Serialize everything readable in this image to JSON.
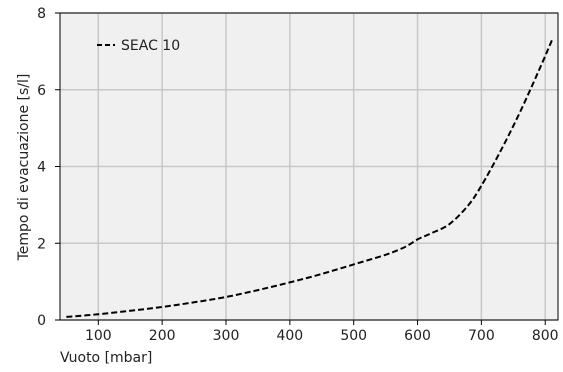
{
  "chart_data": {
    "type": "line",
    "title": "",
    "xlabel": "Vuoto [mbar]",
    "ylabel": "Tempo di evacuazione [s/l]",
    "xlim": [
      40,
      820
    ],
    "ylim": [
      0,
      8
    ],
    "x_ticks": [
      100,
      200,
      300,
      400,
      500,
      600,
      700,
      800
    ],
    "y_ticks": [
      0,
      2,
      4,
      6,
      8
    ],
    "grid": true,
    "legend_position": "top-left",
    "background_color": "#f0f0f0",
    "grid_color": "#c8c8c8",
    "series": [
      {
        "name": "SEAC 10",
        "color": "#000000",
        "line_style": "dashed",
        "x": [
          50,
          100,
          150,
          200,
          250,
          300,
          350,
          400,
          450,
          500,
          550,
          580,
          600,
          620,
          650,
          680,
          700,
          730,
          760,
          790,
          812
        ],
        "y": [
          0.08,
          0.15,
          0.24,
          0.34,
          0.46,
          0.6,
          0.78,
          0.98,
          1.2,
          1.45,
          1.7,
          1.9,
          2.1,
          2.25,
          2.5,
          3.0,
          3.5,
          4.4,
          5.4,
          6.5,
          7.35
        ]
      }
    ]
  }
}
